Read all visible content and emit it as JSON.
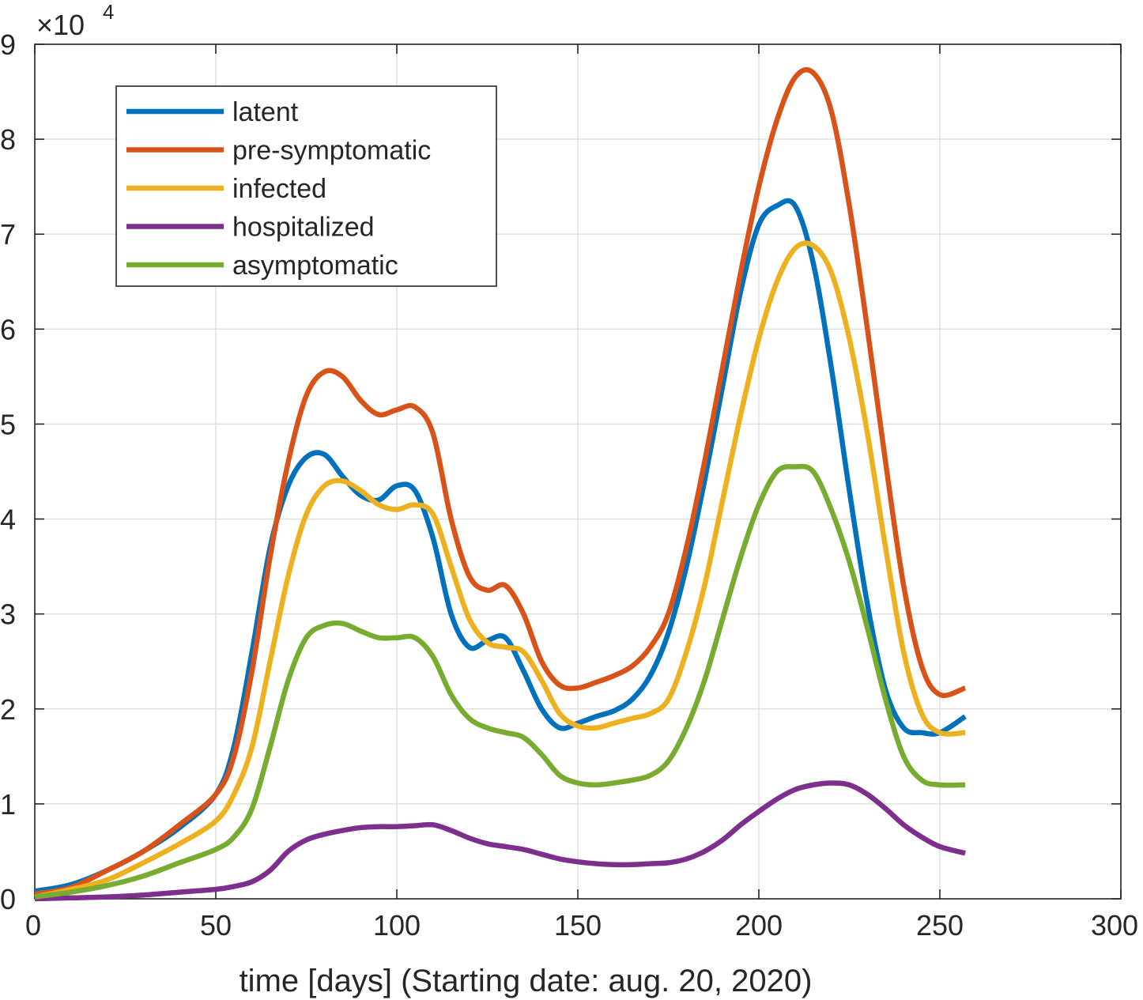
{
  "chart_data": {
    "type": "line",
    "xlabel": "time [days] (Starting date: aug. 20, 2020)",
    "ylabel": "",
    "xlim": [
      0,
      300
    ],
    "ylim": [
      0,
      9
    ],
    "y_multiplier": "×10",
    "y_multiplier_exponent": "4",
    "xticks": [
      "0",
      "50",
      "100",
      "150",
      "200",
      "250",
      "300"
    ],
    "yticks": [
      "0",
      "1",
      "2",
      "3",
      "4",
      "5",
      "6",
      "7",
      "8",
      "9"
    ],
    "grid": true,
    "legend_position": "top-left",
    "x": [
      0,
      10,
      20,
      30,
      40,
      50,
      55,
      60,
      65,
      70,
      75,
      80,
      85,
      90,
      95,
      100,
      105,
      110,
      115,
      120,
      125,
      130,
      135,
      140,
      145,
      150,
      155,
      160,
      165,
      170,
      175,
      180,
      185,
      190,
      195,
      200,
      205,
      210,
      215,
      220,
      225,
      230,
      235,
      240,
      245,
      250,
      257
    ],
    "series": [
      {
        "name": "latent",
        "color": "#0072BD",
        "values": [
          0.08,
          0.15,
          0.3,
          0.5,
          0.75,
          1.1,
          1.6,
          2.6,
          3.7,
          4.35,
          4.65,
          4.68,
          4.45,
          4.25,
          4.2,
          4.35,
          4.3,
          3.8,
          3.0,
          2.65,
          2.72,
          2.75,
          2.4,
          2.0,
          1.8,
          1.85,
          1.92,
          1.98,
          2.1,
          2.35,
          2.8,
          3.5,
          4.4,
          5.4,
          6.4,
          7.1,
          7.3,
          7.3,
          6.7,
          5.6,
          4.3,
          3.1,
          2.2,
          1.8,
          1.75,
          1.75,
          1.92
        ]
      },
      {
        "name": "pre-symptomatic",
        "color": "#D95319",
        "values": [
          0.05,
          0.12,
          0.3,
          0.5,
          0.78,
          1.1,
          1.5,
          2.4,
          3.6,
          4.6,
          5.3,
          5.55,
          5.5,
          5.25,
          5.1,
          5.15,
          5.18,
          4.9,
          4.0,
          3.4,
          3.25,
          3.3,
          3.0,
          2.5,
          2.25,
          2.22,
          2.28,
          2.35,
          2.45,
          2.65,
          3.0,
          3.7,
          4.6,
          5.6,
          6.6,
          7.5,
          8.2,
          8.65,
          8.7,
          8.3,
          7.3,
          6.0,
          4.6,
          3.3,
          2.45,
          2.15,
          2.22
        ]
      },
      {
        "name": "infected",
        "color": "#EDB120",
        "values": [
          0.02,
          0.1,
          0.2,
          0.38,
          0.58,
          0.82,
          1.1,
          1.6,
          2.5,
          3.4,
          4.05,
          4.35,
          4.4,
          4.3,
          4.15,
          4.1,
          4.15,
          4.05,
          3.5,
          2.95,
          2.7,
          2.65,
          2.6,
          2.3,
          1.95,
          1.82,
          1.8,
          1.85,
          1.9,
          1.95,
          2.1,
          2.6,
          3.3,
          4.2,
          5.1,
          5.9,
          6.5,
          6.85,
          6.88,
          6.6,
          5.9,
          4.9,
          3.7,
          2.6,
          1.95,
          1.75,
          1.75
        ]
      },
      {
        "name": "hospitalized",
        "color": "#7E2F8E",
        "values": [
          0.0,
          0.01,
          0.02,
          0.04,
          0.07,
          0.1,
          0.13,
          0.18,
          0.3,
          0.5,
          0.62,
          0.68,
          0.72,
          0.75,
          0.76,
          0.76,
          0.77,
          0.78,
          0.72,
          0.64,
          0.58,
          0.55,
          0.52,
          0.47,
          0.42,
          0.39,
          0.37,
          0.36,
          0.36,
          0.37,
          0.38,
          0.42,
          0.5,
          0.62,
          0.78,
          0.92,
          1.05,
          1.15,
          1.2,
          1.22,
          1.2,
          1.1,
          0.95,
          0.78,
          0.65,
          0.55,
          0.48
        ]
      },
      {
        "name": "asymptomatic",
        "color": "#77AC30",
        "values": [
          0.02,
          0.07,
          0.14,
          0.24,
          0.38,
          0.52,
          0.65,
          0.95,
          1.6,
          2.3,
          2.75,
          2.88,
          2.9,
          2.82,
          2.75,
          2.75,
          2.75,
          2.55,
          2.15,
          1.9,
          1.8,
          1.75,
          1.7,
          1.52,
          1.3,
          1.22,
          1.2,
          1.22,
          1.25,
          1.3,
          1.45,
          1.8,
          2.3,
          2.95,
          3.6,
          4.15,
          4.5,
          4.55,
          4.5,
          4.1,
          3.55,
          2.85,
          2.1,
          1.5,
          1.25,
          1.2,
          1.2
        ]
      }
    ]
  }
}
